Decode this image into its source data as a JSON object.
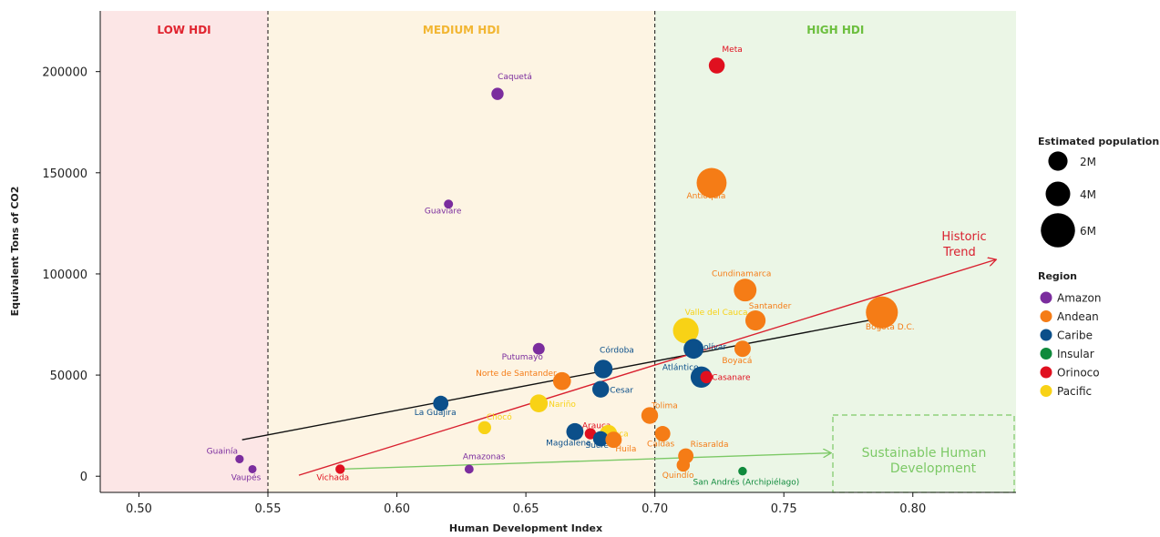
{
  "chart_data": {
    "type": "scatter",
    "xlabel": "Human Development Index",
    "ylabel": "Equivalent Tons of CO2",
    "xlim": [
      0.485,
      0.84
    ],
    "ylim": [
      -8000,
      230000
    ],
    "xticks": [
      0.5,
      0.55,
      0.6,
      0.65,
      0.7,
      0.75,
      0.8
    ],
    "xtick_labels": [
      "0.50",
      "0.55",
      "0.60",
      "0.65",
      "0.70",
      "0.75",
      "0.80"
    ],
    "yticks": [
      0,
      50000,
      100000,
      150000,
      200000
    ],
    "ytick_labels": [
      "0",
      "50000",
      "100000",
      "150000",
      "200000"
    ],
    "grid": false,
    "zones": [
      {
        "label": "LOW HDI",
        "x_from": 0.485,
        "x_to": 0.55,
        "color": "#fce6e6",
        "label_color": "#e0242f"
      },
      {
        "label": "MEDIUM HDI",
        "x_from": 0.55,
        "x_to": 0.7,
        "color": "#fdf4e3",
        "label_color": "#f2b632"
      },
      {
        "label": "HIGH HDI",
        "x_from": 0.7,
        "x_to": 0.84,
        "color": "#ebf6e6",
        "label_color": "#6cbf3e"
      }
    ],
    "regions": [
      {
        "name": "Amazon",
        "color": "#7b2d9e"
      },
      {
        "name": "Andean",
        "color": "#f57c16"
      },
      {
        "name": "Caribe",
        "color": "#0b4f8a"
      },
      {
        "name": "Insular",
        "color": "#0f8a3c"
      },
      {
        "name": "Orinoco",
        "color": "#e0101f"
      },
      {
        "name": "Pacific",
        "color": "#f8d216"
      }
    ],
    "size_legend_title": "Estimated population",
    "size_legend": [
      {
        "label": "2M",
        "value": 2
      },
      {
        "label": "4M",
        "value": 4
      },
      {
        "label": "6M",
        "value": 6
      }
    ],
    "region_legend_title": "Region",
    "points": [
      {
        "name": "Meta",
        "x": 0.724,
        "y": 203000,
        "region": "Orinoco",
        "pop": 1.1
      },
      {
        "name": "Caquetá",
        "x": 0.639,
        "y": 189000,
        "region": "Amazon",
        "pop": 0.41
      },
      {
        "name": "Antioquia",
        "x": 0.722,
        "y": 145000,
        "region": "Andean",
        "pop": 6.7
      },
      {
        "name": "Guaviare",
        "x": 0.62,
        "y": 134500,
        "region": "Amazon",
        "pop": 0.09
      },
      {
        "name": "Cundinamarca",
        "x": 0.735,
        "y": 92000,
        "region": "Andean",
        "pop": 3.2
      },
      {
        "name": "Bogotá D.C.",
        "x": 0.788,
        "y": 81000,
        "region": "Andean",
        "pop": 7.9
      },
      {
        "name": "Santander",
        "x": 0.739,
        "y": 77000,
        "region": "Andean",
        "pop": 2.3
      },
      {
        "name": "Valle del Cauca",
        "x": 0.712,
        "y": 72000,
        "region": "Pacific",
        "pop": 4.5
      },
      {
        "name": "Bolívar",
        "x": 0.715,
        "y": 63000,
        "region": "Caribe",
        "pop": 2.2
      },
      {
        "name": "Boyacá",
        "x": 0.734,
        "y": 63000,
        "region": "Andean",
        "pop": 1.2
      },
      {
        "name": "Putumayo",
        "x": 0.655,
        "y": 63000,
        "region": "Amazon",
        "pop": 0.36
      },
      {
        "name": "Córdoba",
        "x": 0.68,
        "y": 53000,
        "region": "Caribe",
        "pop": 1.8
      },
      {
        "name": "Atlántico",
        "x": 0.718,
        "y": 49000,
        "region": "Caribe",
        "pop": 2.7
      },
      {
        "name": "Casanare",
        "x": 0.72,
        "y": 49000,
        "region": "Orinoco",
        "pop": 0.43
      },
      {
        "name": "Norte de Santander",
        "x": 0.664,
        "y": 47000,
        "region": "Andean",
        "pop": 1.6
      },
      {
        "name": "Cesar",
        "x": 0.679,
        "y": 43000,
        "region": "Caribe",
        "pop": 1.3
      },
      {
        "name": "La Guajira",
        "x": 0.617,
        "y": 36000,
        "region": "Caribe",
        "pop": 0.96
      },
      {
        "name": "Nariño",
        "x": 0.655,
        "y": 36000,
        "region": "Pacific",
        "pop": 1.6
      },
      {
        "name": "Tolima",
        "x": 0.698,
        "y": 30000,
        "region": "Andean",
        "pop": 1.3
      },
      {
        "name": "Chocó",
        "x": 0.634,
        "y": 24000,
        "region": "Pacific",
        "pop": 0.54
      },
      {
        "name": "Arauca",
        "x": 0.675,
        "y": 21000,
        "region": "Orinoco",
        "pop": 0.29
      },
      {
        "name": "Cauca",
        "x": 0.682,
        "y": 21000,
        "region": "Pacific",
        "pop": 1.5
      },
      {
        "name": "Caldas",
        "x": 0.703,
        "y": 21000,
        "region": "Andean",
        "pop": 1.0
      },
      {
        "name": "Magdalena",
        "x": 0.669,
        "y": 22000,
        "region": "Caribe",
        "pop": 1.4
      },
      {
        "name": "Sucre",
        "x": 0.679,
        "y": 18500,
        "region": "Caribe",
        "pop": 0.95
      },
      {
        "name": "Huila",
        "x": 0.684,
        "y": 18000,
        "region": "Andean",
        "pop": 1.2
      },
      {
        "name": "Risaralda",
        "x": 0.712,
        "y": 10000,
        "region": "Andean",
        "pop": 0.97
      },
      {
        "name": "Quindío",
        "x": 0.711,
        "y": 5500,
        "region": "Andean",
        "pop": 0.56
      },
      {
        "name": "Guainía",
        "x": 0.539,
        "y": 8500,
        "region": "Amazon",
        "pop": 0.05
      },
      {
        "name": "Vaupés",
        "x": 0.544,
        "y": 3500,
        "region": "Amazon",
        "pop": 0.04
      },
      {
        "name": "Vichada",
        "x": 0.578,
        "y": 3500,
        "region": "Orinoco",
        "pop": 0.11
      },
      {
        "name": "Amazonas",
        "x": 0.628,
        "y": 3500,
        "region": "Amazon",
        "pop": 0.08
      },
      {
        "name": "San Andrés (Archipiélago)",
        "x": 0.734,
        "y": 2500,
        "region": "Insular",
        "pop": 0.06
      }
    ],
    "lines": [
      {
        "name": "trend",
        "color": "#111111",
        "from": [
          0.54,
          18000
        ],
        "to": [
          0.787,
          78000
        ],
        "arrow": false
      },
      {
        "name": "Historic Trend",
        "color": "#d9202f",
        "from": [
          0.562,
          500
        ],
        "to": [
          0.832,
          107000
        ],
        "arrow": true
      },
      {
        "name": "Sustainable path",
        "color": "#7cc966",
        "from": [
          0.578,
          3500
        ],
        "to": [
          0.768,
          11500
        ],
        "arrow": true
      }
    ],
    "annotations": {
      "historic_trend": [
        "Historic",
        "Trend"
      ],
      "sustainable": [
        "Sustainable Human",
        "Development"
      ]
    }
  }
}
